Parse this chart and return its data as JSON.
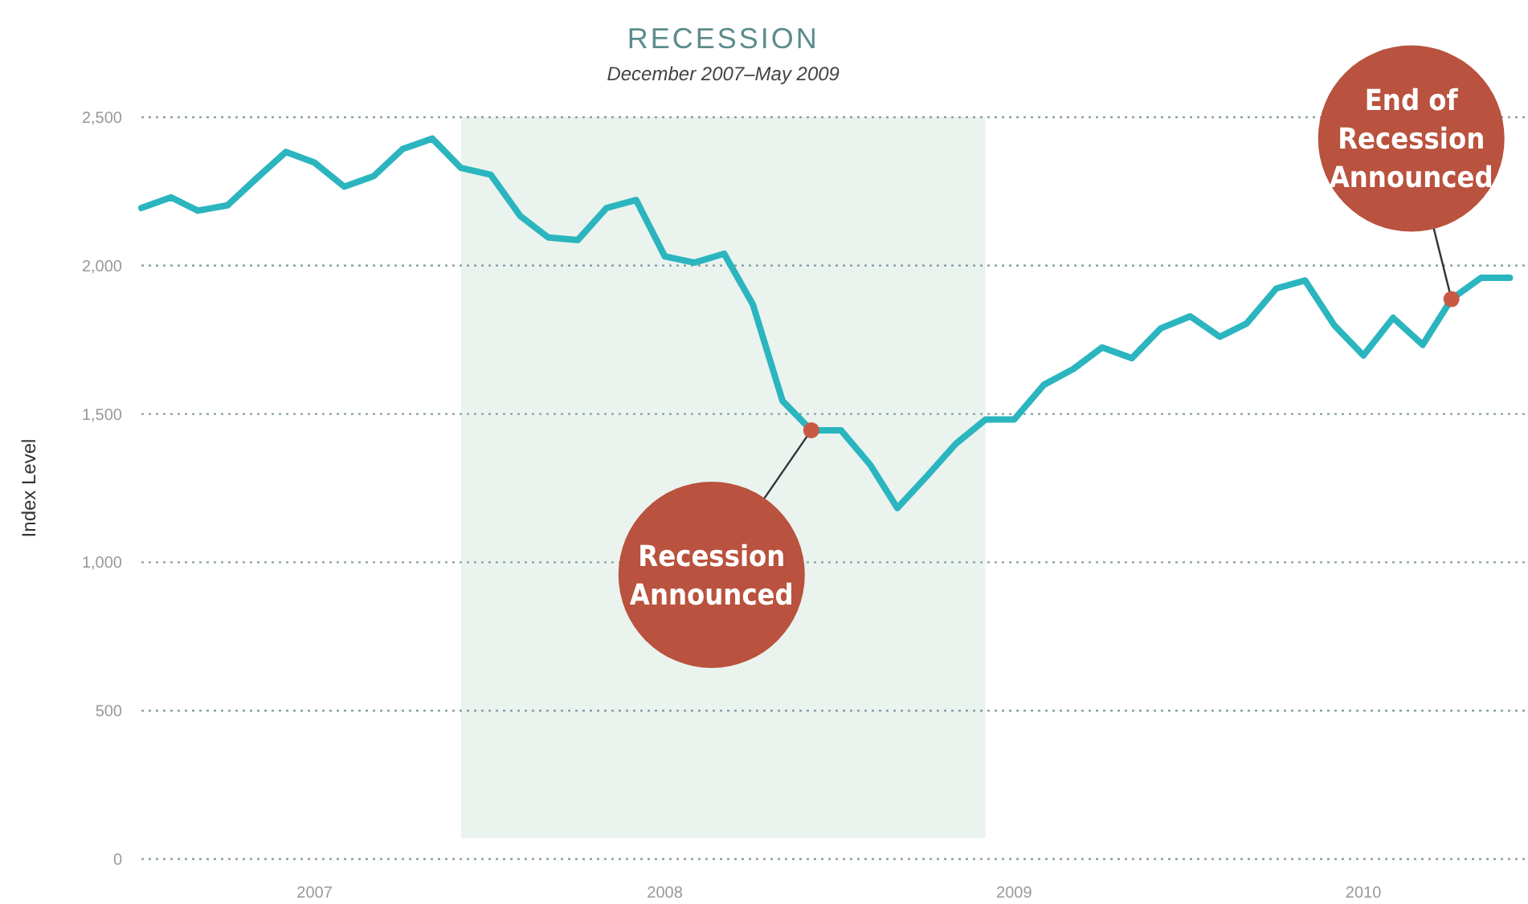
{
  "chart_data": {
    "type": "line",
    "title": "RECESSION",
    "subtitle": "December 2007–May 2009",
    "ylabel": "Index Level",
    "x": [
      "2007-01",
      "2007-02",
      "2007-03",
      "2007-04",
      "2007-05",
      "2007-06",
      "2007-07",
      "2007-08",
      "2007-09",
      "2007-10",
      "2007-11",
      "2007-12",
      "2008-01",
      "2008-02",
      "2008-03",
      "2008-04",
      "2008-05",
      "2008-06",
      "2008-07",
      "2008-08",
      "2008-09",
      "2008-10",
      "2008-11",
      "2008-12",
      "2009-01",
      "2009-02",
      "2009-03",
      "2009-04",
      "2009-05",
      "2009-06",
      "2009-07",
      "2009-08",
      "2009-09",
      "2009-10",
      "2009-11",
      "2009-12",
      "2010-01",
      "2010-02",
      "2010-03",
      "2010-04",
      "2010-05",
      "2010-06",
      "2010-07",
      "2010-08",
      "2010-09",
      "2010-10",
      "2010-11",
      "2010-12"
    ],
    "series": [
      {
        "color": "#2bb5bf",
        "values": [
          2194,
          2230,
          2185,
          2203,
          2293,
          2383,
          2347,
          2266,
          2302,
          2393,
          2428,
          2329,
          2306,
          2167,
          2095,
          2086,
          2194,
          2221,
          2031,
          2010,
          2040,
          1869,
          1544,
          1445,
          1445,
          1327,
          1183,
          1291,
          1399,
          1481,
          1481,
          1598,
          1652,
          1724,
          1688,
          1788,
          1829,
          1760,
          1805,
          1923,
          1950,
          1797,
          1697,
          1824,
          1733,
          1887,
          1959,
          1959
        ]
      }
    ],
    "xlim": [
      "2007-01",
      "2010-12-20"
    ],
    "xticks": [
      {
        "value": "2007-07-01",
        "label": "2007"
      },
      {
        "value": "2008-07-01",
        "label": "2008"
      },
      {
        "value": "2009-07-01",
        "label": "2009"
      },
      {
        "value": "2010-07-01",
        "label": "2010"
      }
    ],
    "ylim": [
      0,
      2500
    ],
    "yticks": [
      0,
      500,
      {
        "value": 1000,
        "label": "1,000"
      },
      {
        "value": 1500,
        "label": "1,500"
      },
      {
        "value": 2000,
        "label": "2,000"
      },
      {
        "value": 2500,
        "label": "2,500"
      }
    ],
    "grid": "y",
    "marker": "none",
    "line_style": "solid",
    "bands": [
      {
        "axis": "x",
        "from": "2007-12",
        "to": "2009-06",
        "color": "#eaf3ee"
      }
    ],
    "annotations": [
      {
        "text": "Recession Announced",
        "x": "2008-12",
        "y": 1445
      },
      {
        "text": "End of Recession Announced",
        "x": "2010-10",
        "y": 1887
      }
    ]
  }
}
